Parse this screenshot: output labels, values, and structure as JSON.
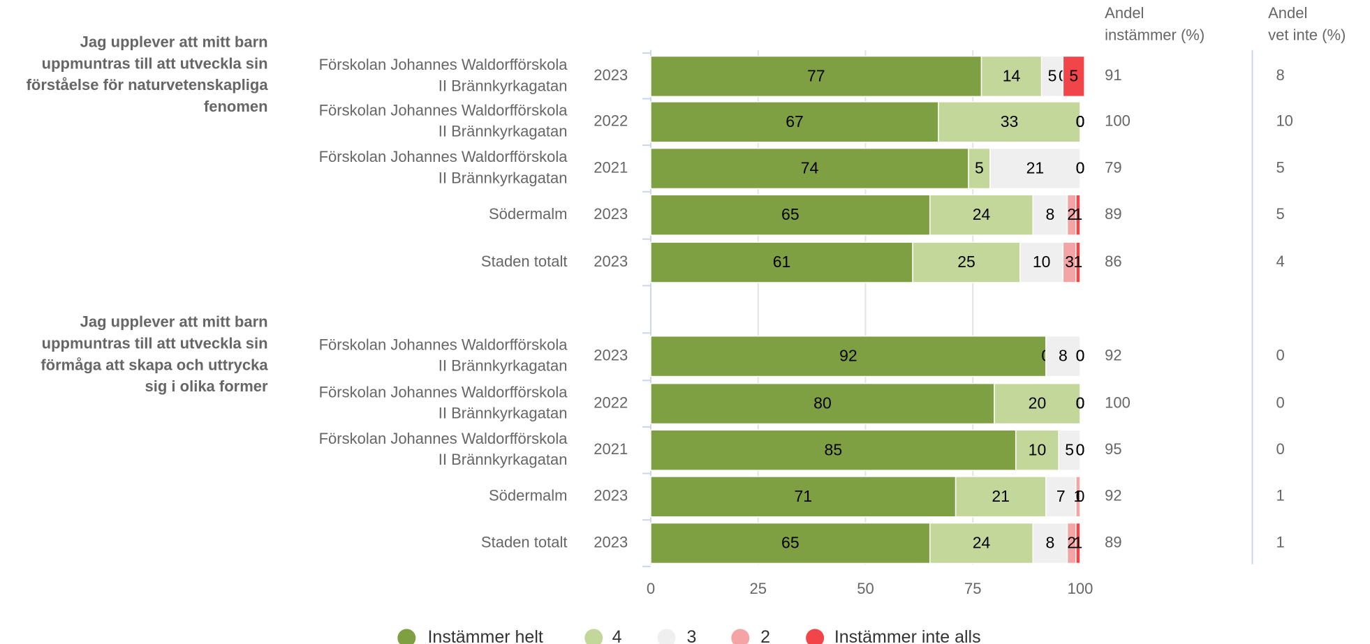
{
  "chart_data": {
    "type": "stacked-bar-horizontal",
    "groups": [
      {
        "question": [
          "Jag upplever att mitt barn",
          "uppmuntras till att utveckla sin",
          "förståelse för naturvetenskapliga",
          "fenomen"
        ],
        "rows": [
          {
            "unit": [
              "Förskolan Johannes Waldorfförskola",
              "II Brännkyrkagatan"
            ],
            "year": "2023",
            "share_agree": 91,
            "share_dont_know": 8
          },
          {
            "unit": [
              "Förskolan Johannes Waldorfförskola",
              "II Brännkyrkagatan"
            ],
            "year": "2022",
            "share_agree": 100,
            "share_dont_know": 10
          },
          {
            "unit": [
              "Förskolan Johannes Waldorfförskola",
              "II Brännkyrkagatan"
            ],
            "year": "2021",
            "share_agree": 79,
            "share_dont_know": 5
          },
          {
            "unit": [
              "Södermalm"
            ],
            "year": "2023",
            "share_agree": 89,
            "share_dont_know": 5
          },
          {
            "unit": [
              "Staden totalt"
            ],
            "year": "2023",
            "share_agree": 86,
            "share_dont_know": 4
          }
        ]
      },
      {
        "question": [
          "Jag upplever att mitt barn",
          "uppmuntras till att utveckla sin",
          "förmåga att skapa och uttrycka",
          "sig i olika former"
        ],
        "rows": [
          {
            "unit": [
              "Förskolan Johannes Waldorfförskola",
              "II Brännkyrkagatan"
            ],
            "year": "2023",
            "share_agree": 92,
            "share_dont_know": 0
          },
          {
            "unit": [
              "Förskolan Johannes Waldorfförskola",
              "II Brännkyrkagatan"
            ],
            "year": "2022",
            "share_agree": 100,
            "share_dont_know": 0
          },
          {
            "unit": [
              "Förskolan Johannes Waldorfförskola",
              "II Brännkyrkagatan"
            ],
            "year": "2021",
            "share_agree": 95,
            "share_dont_know": 0
          },
          {
            "unit": [
              "Södermalm"
            ],
            "year": "2023",
            "share_agree": 92,
            "share_dont_know": 1
          },
          {
            "unit": [
              "Staden totalt"
            ],
            "year": "2023",
            "share_agree": 89,
            "share_dont_know": 1
          }
        ]
      }
    ],
    "column_headers": [
      [
        "Andel",
        "instämmer (%)"
      ],
      [
        "Andel",
        "vet inte (%)"
      ]
    ],
    "series": [
      {
        "name": "Instämmer helt",
        "color": "#7f9f43",
        "values": [
          77,
          67,
          74,
          65,
          61,
          92,
          80,
          85,
          71,
          65
        ]
      },
      {
        "name": "4",
        "color": "#c4d79b",
        "values": [
          14,
          33,
          5,
          24,
          25,
          0,
          20,
          10,
          21,
          24
        ]
      },
      {
        "name": "3",
        "color": "#efefef",
        "values": [
          5,
          0,
          21,
          8,
          10,
          8,
          0,
          5,
          7,
          8
        ]
      },
      {
        "name": "2",
        "color": "#f4a4a4",
        "values": [
          0,
          0,
          0,
          2,
          3,
          0,
          0,
          0,
          1,
          2
        ]
      },
      {
        "name": "Instämmer inte alls",
        "color": "#f2454a",
        "values": [
          5,
          0,
          0,
          1,
          1,
          0,
          0,
          0,
          0,
          1
        ]
      }
    ],
    "xlim": [
      0,
      100
    ],
    "xticks": [
      0,
      25,
      50,
      75,
      100
    ],
    "grid": true,
    "legend": "bottom"
  }
}
